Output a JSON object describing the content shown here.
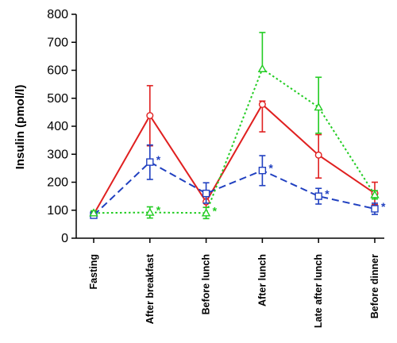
{
  "chart_data": {
    "type": "line",
    "ylabel": "Insulin (pmol/l)",
    "xlabel": "",
    "ylim": [
      0,
      800
    ],
    "yticks": [
      0,
      100,
      200,
      300,
      400,
      500,
      600,
      700,
      800
    ],
    "grid": false,
    "categories": [
      "Fasting",
      "After breakfast",
      "Before lunch",
      "After lunch",
      "Late after lunch",
      "Before dinner"
    ],
    "series": [
      {
        "color": "#e02020",
        "line_style": "solid",
        "marker": "circle",
        "values": [
          85,
          438,
          130,
          478,
          297,
          160
        ],
        "err_low": [
          75,
          330,
          110,
          380,
          215,
          120
        ],
        "err_high": [
          95,
          545,
          150,
          490,
          370,
          200
        ],
        "stars": [
          false,
          false,
          false,
          false,
          false,
          false
        ]
      },
      {
        "color": "#2040c0",
        "line_style": "dashed",
        "marker": "square",
        "values": [
          82,
          272,
          160,
          242,
          150,
          105
        ],
        "err_low": [
          72,
          210,
          125,
          188,
          122,
          85
        ],
        "err_high": [
          92,
          333,
          198,
          295,
          178,
          125
        ],
        "stars": [
          false,
          true,
          false,
          true,
          true,
          true
        ]
      },
      {
        "color": "#22cc22",
        "line_style": "dotted",
        "marker": "triangle",
        "values": [
          90,
          92,
          90,
          605,
          468,
          155
        ],
        "err_low": [
          82,
          72,
          70,
          600,
          375,
          140
        ],
        "err_high": [
          98,
          112,
          110,
          735,
          575,
          170
        ],
        "stars": [
          false,
          true,
          true,
          false,
          false,
          false
        ]
      }
    ],
    "star_text": "*"
  }
}
